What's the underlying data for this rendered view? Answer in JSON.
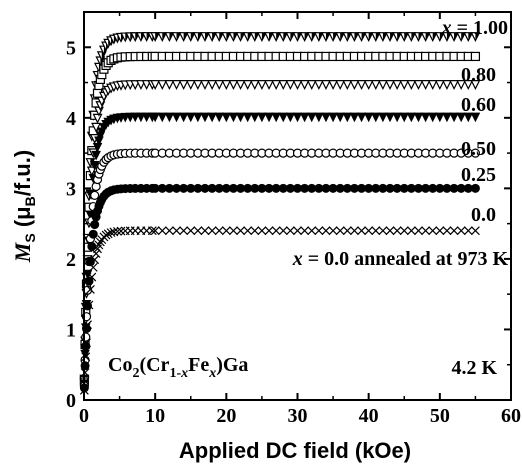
{
  "chart_data": {
    "type": "scatter",
    "title": "",
    "xlabel": "Applied DC field (kOe)",
    "ylabel": {
      "main": "M",
      "sub1": "S",
      "open": " (μ",
      "sub2": "B",
      "close": "/f.u.)"
    },
    "xlim": [
      0,
      60
    ],
    "ylim": [
      0,
      5.5
    ],
    "xticks": [
      0,
      10,
      20,
      30,
      40,
      50,
      60
    ],
    "yticks": [
      0,
      1,
      2,
      3,
      4,
      5
    ],
    "grid": false,
    "legend": "none",
    "series": [
      {
        "name": "x = 1.00",
        "marker": "triangle-down-half",
        "saturation": 5.15,
        "k": 0.85,
        "label": {
          "prefix": "x",
          "rest": " = 1.00"
        }
      },
      {
        "name": "0.80",
        "marker": "square-open",
        "saturation": 4.87,
        "k": 0.85,
        "label": {
          "text": "0.80"
        }
      },
      {
        "name": "0.60",
        "marker": "triangle-down-open",
        "saturation": 4.47,
        "k": 0.85,
        "label": {
          "text": "0.60"
        }
      },
      {
        "name": "0.50",
        "marker": "triangle-down-filled",
        "saturation": 4.01,
        "k": 0.85,
        "label": {
          "text": "0.50"
        }
      },
      {
        "name": "0.25",
        "marker": "circle-open",
        "saturation": 3.5,
        "k": 0.85,
        "label": {
          "text": "0.25"
        }
      },
      {
        "name": "0.0 annealed at 973 K",
        "marker": "circle-filled",
        "saturation": 3.0,
        "k": 0.85,
        "label": {
          "prefix": "x",
          "rest": " = 0.0 annealed at 973 K"
        }
      },
      {
        "name": "0.0",
        "marker": "x-cross",
        "saturation": 2.4,
        "k": 0.85,
        "label": {
          "text": "0.0"
        }
      }
    ],
    "x_points": [
      0.05,
      0.15,
      0.25,
      0.35,
      0.5,
      0.7,
      0.9,
      1.1,
      1.3,
      1.5,
      1.7,
      1.9,
      2.1,
      2.3,
      2.5,
      2.8,
      3.1,
      3.4,
      3.8,
      4.2,
      4.7,
      5.2,
      5.8,
      6.5,
      7.2,
      8.0,
      8.8,
      9.6,
      10,
      11,
      12,
      13,
      14,
      15,
      16,
      17,
      18,
      19,
      20,
      21,
      22,
      23,
      24,
      25,
      26,
      27,
      28,
      29,
      30,
      31,
      32,
      33,
      34,
      35,
      36,
      37,
      38,
      39,
      40,
      41,
      42,
      43,
      44,
      45,
      46,
      47,
      48,
      49,
      50,
      51,
      52,
      53,
      54,
      55
    ],
    "annotations": {
      "compound": {
        "parts": [
          {
            "t": "Co",
            "s": false
          },
          {
            "t": "2",
            "s": true
          },
          {
            "t": "(Cr",
            "s": false
          },
          {
            "t": "1-",
            "s": true
          },
          {
            "t": "x",
            "s": true,
            "i": true
          },
          {
            "t": "Fe",
            "s": false
          },
          {
            "t": "x",
            "s": true,
            "i": true
          },
          {
            "t": ")Ga",
            "s": false
          }
        ]
      },
      "temperature": "4.2 K"
    }
  }
}
